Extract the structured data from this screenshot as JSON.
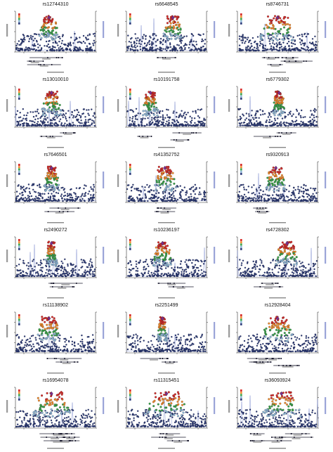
{
  "chart_data": [
    {
      "type": "scatter",
      "title": "rs12744310",
      "snp_peak": [
        2,
        4.5,
        6.5
      ],
      "peak_rel": 0.42,
      "spread": 0.1,
      "genes": 3,
      "xticks": [
        "",
        "",
        "",
        ""
      ]
    },
    {
      "type": "scatter",
      "title": "rs6648545",
      "snp_peak": [
        1.5,
        3.5,
        5.0
      ],
      "peak_rel": 0.58,
      "spread": 0.1,
      "genes": 1,
      "xticks": [
        "",
        "",
        "",
        ""
      ]
    },
    {
      "type": "scatter",
      "title": "rs8746731",
      "snp_peak": [
        2,
        4,
        5.5
      ],
      "peak_rel": 0.5,
      "spread": 0.18,
      "genes": 5,
      "xticks": [
        "",
        "",
        "",
        ""
      ]
    },
    {
      "type": "scatter",
      "title": "rs13010010",
      "snp_peak": [
        2,
        4,
        6.5
      ],
      "peak_rel": 0.45,
      "spread": 0.1,
      "genes": 2,
      "xticks": [
        "",
        "",
        "",
        ""
      ]
    },
    {
      "type": "scatter",
      "title": "rs10191758",
      "snp_peak": [
        2,
        4,
        6.0
      ],
      "peak_rel": 0.3,
      "spread": 0.08,
      "genes": 3,
      "xticks": [
        "",
        "",
        "",
        ""
      ]
    },
    {
      "type": "scatter",
      "title": "rs6779302",
      "snp_peak": [
        2,
        4.5,
        6.0
      ],
      "peak_rel": 0.52,
      "spread": 0.06,
      "genes": 2,
      "xticks": [
        "",
        "",
        "",
        ""
      ]
    },
    {
      "type": "scatter",
      "title": "rs7646501",
      "snp_peak": [
        2,
        4,
        5.5
      ],
      "peak_rel": 0.45,
      "spread": 0.08,
      "genes": 2,
      "xticks": [
        "",
        "",
        "",
        ""
      ]
    },
    {
      "type": "scatter",
      "title": "rs41352752",
      "snp_peak": [
        1.5,
        3,
        4.0
      ],
      "peak_rel": 0.48,
      "spread": 0.12,
      "genes": 2,
      "xticks": [
        "",
        "",
        "",
        ""
      ]
    },
    {
      "type": "scatter",
      "title": "rs9320913",
      "snp_peak": [
        2,
        4,
        6.0
      ],
      "peak_rel": 0.48,
      "spread": 0.1,
      "genes": 2,
      "xticks": [
        "",
        "",
        "",
        ""
      ]
    },
    {
      "type": "scatter",
      "title": "rs2490272",
      "snp_peak": [
        2,
        4,
        6.0
      ],
      "peak_rel": 0.45,
      "spread": 0.06,
      "genes": 2,
      "xticks": [
        "",
        "",
        "",
        ""
      ]
    },
    {
      "type": "scatter",
      "title": "rs10236197",
      "snp_peak": [
        2,
        4.5,
        6.5
      ],
      "peak_rel": 0.45,
      "spread": 0.1,
      "genes": 2,
      "xticks": [
        "",
        "",
        "",
        ""
      ]
    },
    {
      "type": "scatter",
      "title": "rs4728302",
      "snp_peak": [
        2,
        4,
        6.0
      ],
      "peak_rel": 0.62,
      "spread": 0.12,
      "genes": 2,
      "xticks": [
        "",
        "",
        "",
        ""
      ]
    },
    {
      "type": "scatter",
      "title": "rs11138902",
      "snp_peak": [
        2,
        4,
        5.5
      ],
      "peak_rel": 0.42,
      "spread": 0.12,
      "genes": 2,
      "xticks": [
        "",
        "",
        "",
        ""
      ]
    },
    {
      "type": "scatter",
      "title": "rs2251499",
      "snp_peak": [
        2,
        4,
        6.5
      ],
      "peak_rel": 0.45,
      "spread": 0.05,
      "genes": 2,
      "xticks": [
        "",
        "",
        "",
        ""
      ]
    },
    {
      "type": "scatter",
      "title": "rs12928404",
      "snp_peak": [
        2,
        4,
        5.0
      ],
      "peak_rel": 0.5,
      "spread": 0.16,
      "genes": 6,
      "xticks": [
        "",
        "",
        "",
        ""
      ]
    },
    {
      "type": "scatter",
      "title": "rs16954078",
      "snp_peak": [
        2,
        4,
        5.0
      ],
      "peak_rel": 0.45,
      "spread": 0.2,
      "genes": 6,
      "xticks": [
        "",
        "",
        "",
        ""
      ]
    },
    {
      "type": "scatter",
      "title": "rs11315451",
      "snp_peak": [
        2,
        4,
        5.0
      ],
      "peak_rel": 0.5,
      "spread": 0.22,
      "genes": 3,
      "xticks": [
        "",
        "",
        "",
        ""
      ]
    },
    {
      "type": "scatter",
      "title": "rs36093924",
      "snp_peak": [
        2,
        4,
        5.0
      ],
      "peak_rel": 0.55,
      "spread": 0.2,
      "genes": 6,
      "xticks": [
        "",
        "",
        "",
        ""
      ]
    }
  ],
  "colors": {
    "ld_lowest": "#2b3a7a",
    "ld_low": "#8fb8d8",
    "ld_mid": "#3aa34a",
    "ld_high": "#f08a2c",
    "ld_highest": "#d62a28",
    "lead_snp": "#7b2d8e",
    "recomb": "#6f7fc9",
    "axis": "#333333"
  },
  "legend_colors": [
    "#d62a28",
    "#f08a2c",
    "#3aa34a",
    "#8fb8d8",
    "#2b3a7a"
  ]
}
